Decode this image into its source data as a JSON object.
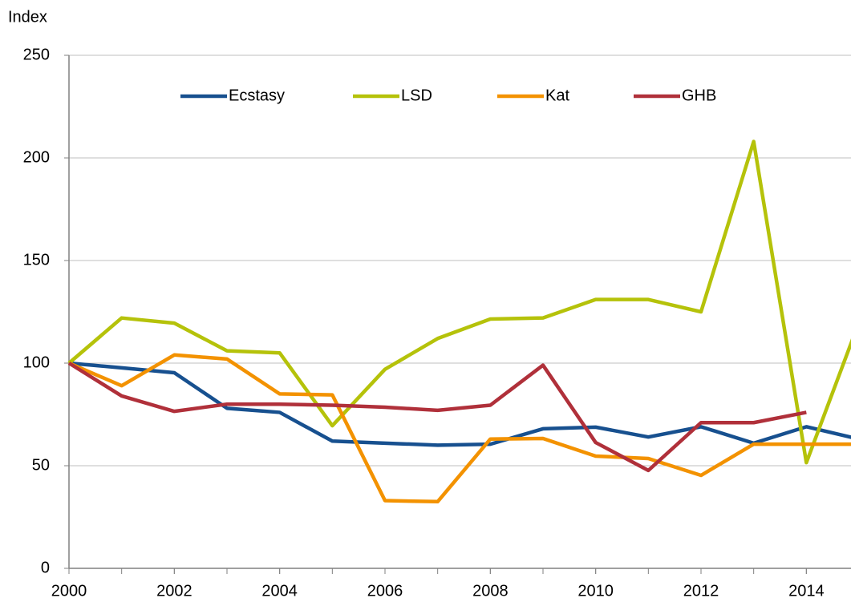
{
  "chart_data": {
    "type": "line",
    "y_axis_label": "Index",
    "x": [
      2000,
      2001,
      2002,
      2003,
      2004,
      2005,
      2006,
      2007,
      2008,
      2009,
      2010,
      2011,
      2012,
      2013,
      2014,
      2015
    ],
    "xlim": [
      2000,
      2015
    ],
    "xticks": [
      2000,
      2002,
      2004,
      2006,
      2008,
      2010,
      2012,
      2014
    ],
    "ylim": [
      0,
      250
    ],
    "yticks": [
      0,
      50,
      100,
      150,
      200,
      250
    ],
    "grid": true,
    "legend": "top",
    "series": [
      {
        "name": "Ecstasy",
        "color": "#17508f",
        "values": [
          100,
          97.7,
          95.3,
          78,
          76,
          62,
          61,
          60,
          60.5,
          68,
          68.8,
          64,
          69,
          61,
          69,
          63
        ]
      },
      {
        "name": "LSD",
        "color": "#b5c20a",
        "values": [
          100,
          122,
          119.5,
          106,
          105,
          69.5,
          97,
          112,
          121.5,
          122,
          131,
          131,
          125,
          208,
          51.5,
          120
        ]
      },
      {
        "name": "Kat",
        "color": "#f39200",
        "values": [
          100,
          89,
          104,
          102,
          85,
          84.5,
          33,
          32.5,
          63,
          63.3,
          54.7,
          53.5,
          45.3,
          60.5,
          60.5,
          60.5
        ]
      },
      {
        "name": "GHB",
        "color": "#b0303a",
        "values": [
          100,
          84,
          76.5,
          80,
          80,
          79.5,
          78.5,
          77,
          79.5,
          99,
          61.3,
          47.7,
          71,
          71,
          76,
          null
        ]
      }
    ]
  }
}
